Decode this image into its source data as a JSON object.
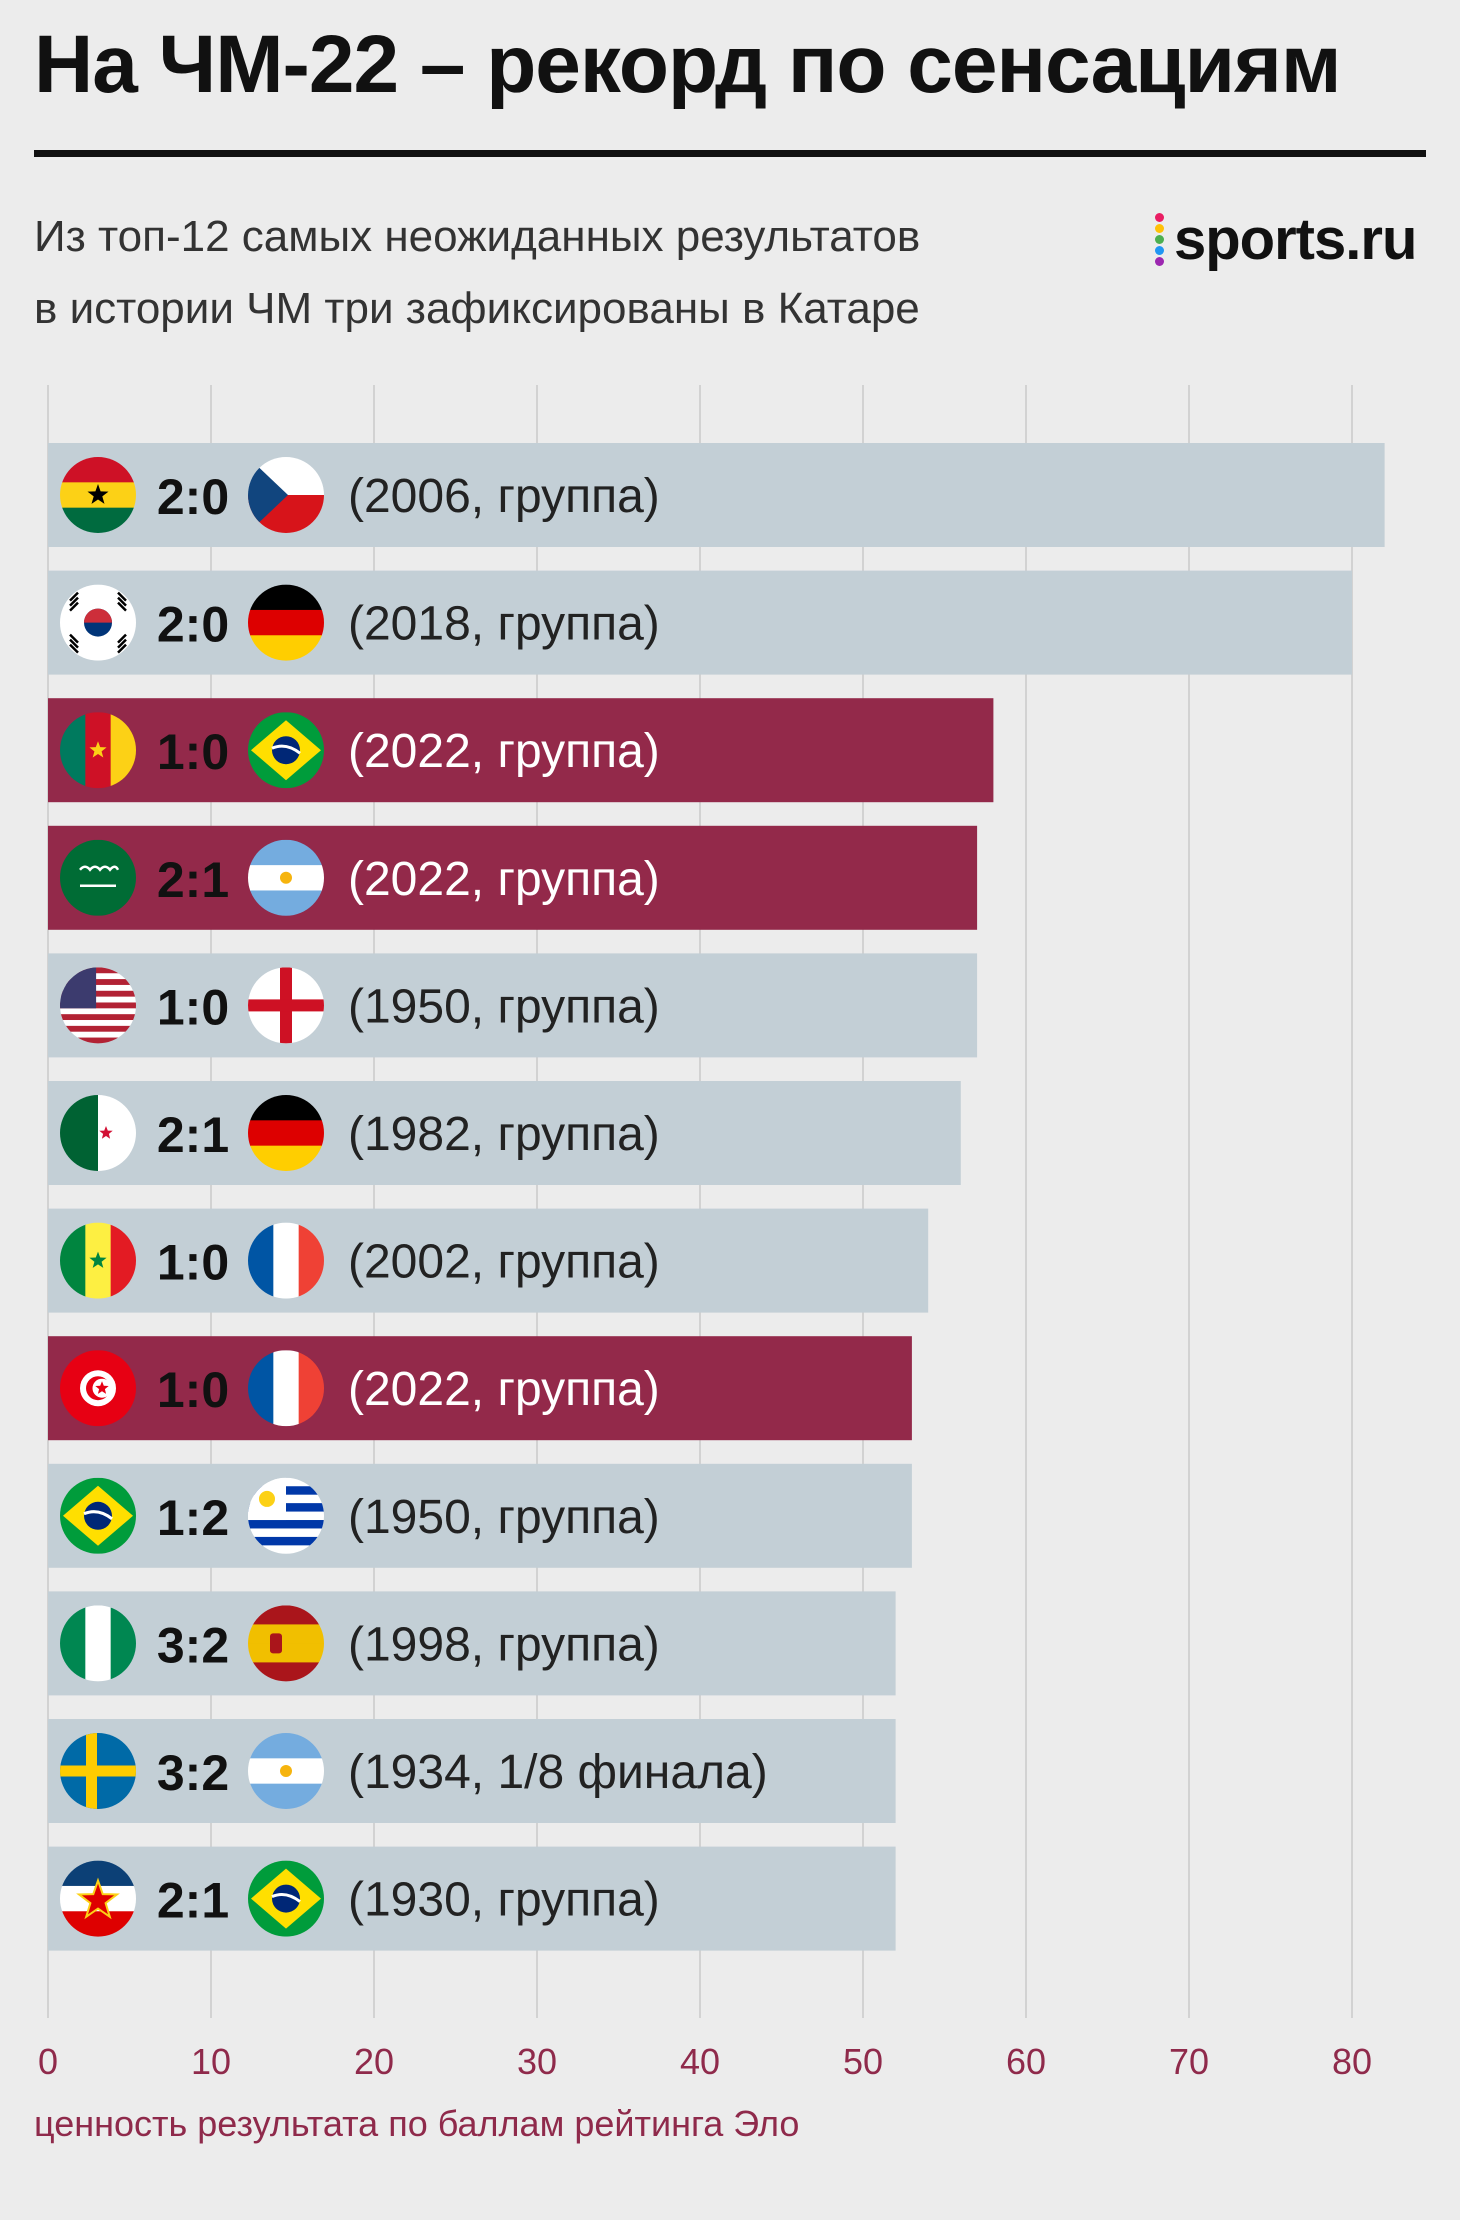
{
  "title": "На ЧМ-22 – рекорд по сенсациям",
  "subtitle": {
    "line1": "Из топ-12 самых неожиданных результатов",
    "line2": "в истории ЧМ три зафиксированы в Катаре"
  },
  "brand": {
    "logo_text": "sports.ru",
    "logo_dot_colors": [
      "#e91e63",
      "#ffc107",
      "#4caf50",
      "#2196f3",
      "#9c27b0"
    ]
  },
  "colors": {
    "bar_default": "#c3cfd6",
    "bar_highlight": "#93294a",
    "gridline": "#d2d2d2",
    "axis_text": "#8f2a4b",
    "score_text": "#111111",
    "label_default": "#222222",
    "label_highlight": "#ffffff"
  },
  "chart_data": {
    "type": "bar",
    "orientation": "horizontal",
    "xlabel": "ценность результата по баллам рейтинга Эло",
    "xlim": [
      0,
      82
    ],
    "xticks": [
      0,
      10,
      20,
      30,
      40,
      50,
      60,
      70,
      80
    ],
    "grid": true,
    "bars": [
      {
        "team1_flag": "ghana-flag",
        "score": "2:0",
        "team2_flag": "czech-flag",
        "label": "(2006, группа)",
        "value": 82,
        "highlight": false
      },
      {
        "team1_flag": "south-korea-flag",
        "score": "2:0",
        "team2_flag": "germany-flag",
        "label": "(2018, группа)",
        "value": 80,
        "highlight": false
      },
      {
        "team1_flag": "cameroon-flag",
        "score": "1:0",
        "team2_flag": "brazil-flag",
        "label": "(2022, группа)",
        "value": 58,
        "highlight": true
      },
      {
        "team1_flag": "saudi-arabia-flag",
        "score": "2:1",
        "team2_flag": "argentina-flag",
        "label": "(2022, группа)",
        "value": 57,
        "highlight": true
      },
      {
        "team1_flag": "usa-flag",
        "score": "1:0",
        "team2_flag": "england-flag",
        "label": "(1950, группа)",
        "value": 57,
        "highlight": false
      },
      {
        "team1_flag": "algeria-flag",
        "score": "2:1",
        "team2_flag": "germany-flag",
        "label": "(1982, группа)",
        "value": 56,
        "highlight": false
      },
      {
        "team1_flag": "senegal-flag",
        "score": "1:0",
        "team2_flag": "france-flag",
        "label": "(2002, группа)",
        "value": 54,
        "highlight": false
      },
      {
        "team1_flag": "tunisia-flag",
        "score": "1:0",
        "team2_flag": "france-flag",
        "label": "(2022, группа)",
        "value": 53,
        "highlight": true
      },
      {
        "team1_flag": "brazil-flag",
        "score": "1:2",
        "team2_flag": "uruguay-flag",
        "label": "(1950, группа)",
        "value": 53,
        "highlight": false
      },
      {
        "team1_flag": "nigeria-flag",
        "score": "3:2",
        "team2_flag": "spain-flag",
        "label": "(1998, группа)",
        "value": 52,
        "highlight": false
      },
      {
        "team1_flag": "sweden-flag",
        "score": "3:2",
        "team2_flag": "argentina-flag",
        "label": "(1934, 1/8 финала)",
        "value": 52,
        "highlight": false
      },
      {
        "team1_flag": "yugoslavia-flag",
        "score": "2:1",
        "team2_flag": "brazil-flag",
        "label": "(1930, группа)",
        "value": 52,
        "highlight": false
      }
    ]
  }
}
